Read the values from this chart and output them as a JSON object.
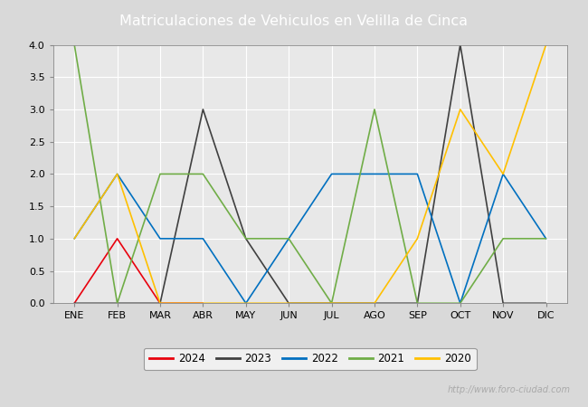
{
  "title": "Matriculaciones de Vehiculos en Velilla de Cinca",
  "title_color": "#ffffff",
  "header_bg": "#5b9bd5",
  "months": [
    "ENE",
    "FEB",
    "MAR",
    "ABR",
    "MAY",
    "JUN",
    "JUL",
    "AGO",
    "SEP",
    "OCT",
    "NOV",
    "DIC"
  ],
  "series": {
    "2024": {
      "values": [
        0,
        1,
        0,
        0,
        null,
        null,
        null,
        null,
        null,
        null,
        null,
        null
      ],
      "color": "#e8000d"
    },
    "2023": {
      "values": [
        0,
        0,
        0,
        3,
        1,
        0,
        0,
        0,
        0,
        4,
        0,
        0
      ],
      "color": "#404040"
    },
    "2022": {
      "values": [
        1,
        2,
        1,
        1,
        0,
        1,
        2,
        2,
        2,
        0,
        2,
        1
      ],
      "color": "#0070c0"
    },
    "2021": {
      "values": [
        4,
        0,
        2,
        2,
        1,
        1,
        0,
        3,
        0,
        0,
        1,
        1
      ],
      "color": "#70ad47"
    },
    "2020": {
      "values": [
        1,
        2,
        0,
        0,
        0,
        0,
        0,
        0,
        1,
        3,
        2,
        4
      ],
      "color": "#ffc000"
    }
  },
  "ylim": [
    0,
    4.0
  ],
  "yticks": [
    0.0,
    0.5,
    1.0,
    1.5,
    2.0,
    2.5,
    3.0,
    3.5,
    4.0
  ],
  "bg_color": "#d9d9d9",
  "plot_bg": "#e8e8e8",
  "grid_color": "#ffffff",
  "legend_order": [
    "2024",
    "2023",
    "2022",
    "2021",
    "2020"
  ],
  "watermark": "http://www.foro-ciudad.com"
}
